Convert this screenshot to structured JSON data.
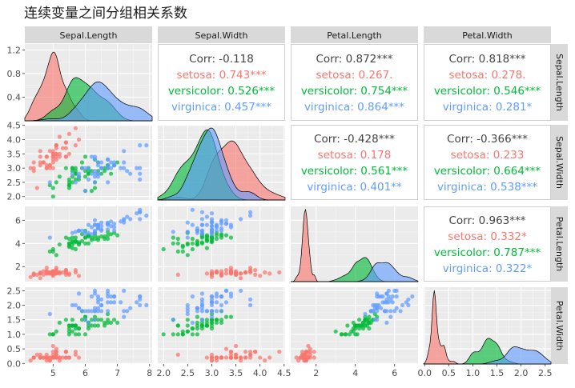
{
  "chart_data": {
    "type": "scatter",
    "title": "连续变量之间分组相关系数",
    "variables": [
      "Sepal.Length",
      "Sepal.Width",
      "Petal.Length",
      "Petal.Width"
    ],
    "groups": [
      {
        "name": "setosa",
        "color": "#F8766D"
      },
      {
        "name": "versicolor",
        "color": "#00BA38"
      },
      {
        "name": "virginica",
        "color": "#619CFF"
      }
    ],
    "ranges": [
      [
        4.3,
        7.9
      ],
      [
        2.0,
        4.4
      ],
      [
        1.0,
        6.9
      ],
      [
        0.1,
        2.5
      ]
    ],
    "ticks": [
      {
        "values": [
          5,
          6,
          7,
          8
        ],
        "labels": [
          "5",
          "6",
          "7",
          "8"
        ]
      },
      {
        "values": [
          2.0,
          2.5,
          3.0,
          3.5,
          4.0,
          4.5
        ],
        "labels": [
          "2.0",
          "2.5",
          "3.0",
          "3.5",
          "4.0",
          "4.5"
        ]
      },
      {
        "values": [
          2,
          4,
          6
        ],
        "labels": [
          "2",
          "4",
          "6"
        ]
      },
      {
        "values": [
          0.0,
          0.5,
          1.0,
          1.5,
          2.0,
          2.5
        ],
        "labels": [
          "0.0",
          "0.5",
          "1.0",
          "1.5",
          "2.0",
          "2.5"
        ]
      }
    ],
    "diag_y_ticks": {
      "values": [
        0.4,
        0.8,
        1.2
      ],
      "labels": [
        "0.4",
        "0.8",
        "1.2"
      ],
      "ymax": 1.3
    },
    "correlations": [
      {
        "row": 0,
        "col": 1,
        "lines": [
          "Corr: -0.118",
          "setosa: 0.743***",
          "versicolor: 0.526***",
          "virginica: 0.457***"
        ]
      },
      {
        "row": 0,
        "col": 2,
        "lines": [
          "Corr: 0.872***",
          "setosa: 0.267.",
          "versicolor: 0.754***",
          "virginica: 0.864***"
        ]
      },
      {
        "row": 0,
        "col": 3,
        "lines": [
          "Corr: 0.818***",
          "setosa: 0.278.",
          "versicolor: 0.546***",
          "virginica: 0.281*"
        ]
      },
      {
        "row": 1,
        "col": 2,
        "lines": [
          "Corr: -0.428***",
          "setosa: 0.178",
          "versicolor: 0.561***",
          "virginica: 0.401**"
        ]
      },
      {
        "row": 1,
        "col": 3,
        "lines": [
          "Corr: -0.366***",
          "setosa: 0.233",
          "versicolor: 0.664***",
          "virginica: 0.538***"
        ]
      },
      {
        "row": 2,
        "col": 3,
        "lines": [
          "Corr: 0.963***",
          "setosa: 0.332*",
          "versicolor: 0.787***",
          "virginica: 0.322*"
        ]
      }
    ],
    "data": {
      "setosa": [
        [
          5.1,
          3.5,
          1.4,
          0.2
        ],
        [
          4.9,
          3.0,
          1.4,
          0.2
        ],
        [
          4.7,
          3.2,
          1.3,
          0.2
        ],
        [
          4.6,
          3.1,
          1.5,
          0.2
        ],
        [
          5.0,
          3.6,
          1.4,
          0.2
        ],
        [
          5.4,
          3.9,
          1.7,
          0.4
        ],
        [
          4.6,
          3.4,
          1.4,
          0.3
        ],
        [
          5.0,
          3.4,
          1.5,
          0.2
        ],
        [
          4.4,
          2.9,
          1.4,
          0.2
        ],
        [
          4.9,
          3.1,
          1.5,
          0.1
        ],
        [
          5.4,
          3.7,
          1.5,
          0.2
        ],
        [
          4.8,
          3.4,
          1.6,
          0.2
        ],
        [
          4.8,
          3.0,
          1.4,
          0.1
        ],
        [
          4.3,
          3.0,
          1.1,
          0.1
        ],
        [
          5.8,
          4.0,
          1.2,
          0.2
        ],
        [
          5.7,
          4.4,
          1.5,
          0.4
        ],
        [
          5.4,
          3.9,
          1.3,
          0.4
        ],
        [
          5.1,
          3.5,
          1.4,
          0.3
        ],
        [
          5.7,
          3.8,
          1.7,
          0.3
        ],
        [
          5.1,
          3.8,
          1.5,
          0.3
        ],
        [
          5.4,
          3.4,
          1.7,
          0.2
        ],
        [
          5.1,
          3.7,
          1.5,
          0.4
        ],
        [
          4.6,
          3.6,
          1.0,
          0.2
        ],
        [
          5.1,
          3.3,
          1.7,
          0.5
        ],
        [
          4.8,
          3.4,
          1.9,
          0.2
        ],
        [
          5.0,
          3.0,
          1.6,
          0.2
        ],
        [
          5.0,
          3.4,
          1.6,
          0.4
        ],
        [
          5.2,
          3.5,
          1.5,
          0.2
        ],
        [
          5.2,
          3.4,
          1.4,
          0.2
        ],
        [
          4.7,
          3.2,
          1.6,
          0.2
        ],
        [
          4.8,
          3.1,
          1.6,
          0.2
        ],
        [
          5.4,
          3.4,
          1.5,
          0.4
        ],
        [
          5.2,
          4.1,
          1.5,
          0.1
        ],
        [
          5.5,
          4.2,
          1.4,
          0.2
        ],
        [
          4.9,
          3.1,
          1.5,
          0.2
        ],
        [
          5.0,
          3.2,
          1.2,
          0.2
        ],
        [
          5.5,
          3.5,
          1.3,
          0.2
        ],
        [
          4.9,
          3.6,
          1.4,
          0.1
        ],
        [
          4.4,
          3.0,
          1.3,
          0.2
        ],
        [
          5.1,
          3.4,
          1.5,
          0.2
        ],
        [
          5.0,
          3.5,
          1.3,
          0.3
        ],
        [
          4.5,
          2.3,
          1.3,
          0.3
        ],
        [
          4.4,
          3.2,
          1.3,
          0.2
        ],
        [
          5.0,
          3.5,
          1.6,
          0.6
        ],
        [
          5.1,
          3.8,
          1.9,
          0.4
        ],
        [
          4.8,
          3.0,
          1.4,
          0.3
        ],
        [
          5.1,
          3.8,
          1.6,
          0.2
        ],
        [
          4.6,
          3.2,
          1.4,
          0.2
        ],
        [
          5.3,
          3.7,
          1.5,
          0.2
        ],
        [
          5.0,
          3.3,
          1.4,
          0.2
        ]
      ],
      "versicolor": [
        [
          7.0,
          3.2,
          4.7,
          1.4
        ],
        [
          6.4,
          3.2,
          4.5,
          1.5
        ],
        [
          6.9,
          3.1,
          4.9,
          1.5
        ],
        [
          5.5,
          2.3,
          4.0,
          1.3
        ],
        [
          6.5,
          2.8,
          4.6,
          1.5
        ],
        [
          5.7,
          2.8,
          4.5,
          1.3
        ],
        [
          6.3,
          3.3,
          4.7,
          1.6
        ],
        [
          4.9,
          2.4,
          3.3,
          1.0
        ],
        [
          6.6,
          2.9,
          4.6,
          1.3
        ],
        [
          5.2,
          2.7,
          3.9,
          1.4
        ],
        [
          5.0,
          2.0,
          3.5,
          1.0
        ],
        [
          5.9,
          3.0,
          4.2,
          1.5
        ],
        [
          6.0,
          2.2,
          4.0,
          1.0
        ],
        [
          6.1,
          2.9,
          4.7,
          1.4
        ],
        [
          5.6,
          2.9,
          3.6,
          1.3
        ],
        [
          6.7,
          3.1,
          4.4,
          1.4
        ],
        [
          5.6,
          3.0,
          4.5,
          1.5
        ],
        [
          5.8,
          2.7,
          4.1,
          1.0
        ],
        [
          6.2,
          2.2,
          4.5,
          1.5
        ],
        [
          5.6,
          2.5,
          3.9,
          1.1
        ],
        [
          5.9,
          3.2,
          4.8,
          1.8
        ],
        [
          6.1,
          2.8,
          4.0,
          1.3
        ],
        [
          6.3,
          2.5,
          4.9,
          1.5
        ],
        [
          6.1,
          2.8,
          4.7,
          1.2
        ],
        [
          6.4,
          2.9,
          4.3,
          1.3
        ],
        [
          6.6,
          3.0,
          4.4,
          1.4
        ],
        [
          6.8,
          2.8,
          4.8,
          1.4
        ],
        [
          6.7,
          3.0,
          5.0,
          1.7
        ],
        [
          6.0,
          2.9,
          4.5,
          1.5
        ],
        [
          5.7,
          2.6,
          3.5,
          1.0
        ],
        [
          5.5,
          2.4,
          3.8,
          1.1
        ],
        [
          5.5,
          2.4,
          3.7,
          1.0
        ],
        [
          5.8,
          2.7,
          3.9,
          1.2
        ],
        [
          6.0,
          2.7,
          5.1,
          1.6
        ],
        [
          5.4,
          3.0,
          4.5,
          1.5
        ],
        [
          6.0,
          3.4,
          4.5,
          1.6
        ],
        [
          6.7,
          3.1,
          4.7,
          1.5
        ],
        [
          6.3,
          2.3,
          4.4,
          1.3
        ],
        [
          5.6,
          3.0,
          4.1,
          1.3
        ],
        [
          5.5,
          2.5,
          4.0,
          1.3
        ],
        [
          5.5,
          2.6,
          4.4,
          1.2
        ],
        [
          6.1,
          3.0,
          4.6,
          1.4
        ],
        [
          5.8,
          2.6,
          4.0,
          1.2
        ],
        [
          5.0,
          2.3,
          3.3,
          1.0
        ],
        [
          5.6,
          2.7,
          4.2,
          1.3
        ],
        [
          5.7,
          3.0,
          4.2,
          1.2
        ],
        [
          5.7,
          2.9,
          4.2,
          1.3
        ],
        [
          6.2,
          2.9,
          4.3,
          1.3
        ],
        [
          5.1,
          2.5,
          3.0,
          1.1
        ],
        [
          5.7,
          2.8,
          4.1,
          1.3
        ]
      ],
      "virginica": [
        [
          6.3,
          3.3,
          6.0,
          2.5
        ],
        [
          5.8,
          2.7,
          5.1,
          1.9
        ],
        [
          7.1,
          3.0,
          5.9,
          2.1
        ],
        [
          6.3,
          2.9,
          5.6,
          1.8
        ],
        [
          6.5,
          3.0,
          5.8,
          2.2
        ],
        [
          7.6,
          3.0,
          6.6,
          2.1
        ],
        [
          4.9,
          2.5,
          4.5,
          1.7
        ],
        [
          7.3,
          2.9,
          6.3,
          1.8
        ],
        [
          6.7,
          2.5,
          5.8,
          1.8
        ],
        [
          7.2,
          3.6,
          6.1,
          2.5
        ],
        [
          6.5,
          3.2,
          5.1,
          2.0
        ],
        [
          6.4,
          2.7,
          5.3,
          1.9
        ],
        [
          6.8,
          3.0,
          5.5,
          2.1
        ],
        [
          5.7,
          2.5,
          5.0,
          2.0
        ],
        [
          5.8,
          2.8,
          5.1,
          2.4
        ],
        [
          6.4,
          3.2,
          5.3,
          2.3
        ],
        [
          6.5,
          3.0,
          5.5,
          1.8
        ],
        [
          7.7,
          3.8,
          6.7,
          2.2
        ],
        [
          7.7,
          2.6,
          6.9,
          2.3
        ],
        [
          6.0,
          2.2,
          5.0,
          1.5
        ],
        [
          6.9,
          3.2,
          5.7,
          2.3
        ],
        [
          5.6,
          2.8,
          4.9,
          2.0
        ],
        [
          7.7,
          2.8,
          6.7,
          2.0
        ],
        [
          6.3,
          2.7,
          4.9,
          1.8
        ],
        [
          6.7,
          3.3,
          5.7,
          2.1
        ],
        [
          7.2,
          3.2,
          6.0,
          1.8
        ],
        [
          6.2,
          2.8,
          4.8,
          1.8
        ],
        [
          6.1,
          3.0,
          4.9,
          1.8
        ],
        [
          6.4,
          2.8,
          5.6,
          2.1
        ],
        [
          7.2,
          3.0,
          5.8,
          1.6
        ],
        [
          7.4,
          2.8,
          6.1,
          1.9
        ],
        [
          7.9,
          3.8,
          6.4,
          2.0
        ],
        [
          6.4,
          2.8,
          5.6,
          2.2
        ],
        [
          6.3,
          2.8,
          5.1,
          1.5
        ],
        [
          6.1,
          2.6,
          5.6,
          1.4
        ],
        [
          7.7,
          3.0,
          6.1,
          2.3
        ],
        [
          6.3,
          3.4,
          5.6,
          2.4
        ],
        [
          6.4,
          3.1,
          5.5,
          1.8
        ],
        [
          6.0,
          3.0,
          4.8,
          1.8
        ],
        [
          6.9,
          3.1,
          5.4,
          2.1
        ],
        [
          6.7,
          3.1,
          5.6,
          2.4
        ],
        [
          6.9,
          3.1,
          5.1,
          2.3
        ],
        [
          5.8,
          2.7,
          5.1,
          1.9
        ],
        [
          6.8,
          3.2,
          5.9,
          2.3
        ],
        [
          6.7,
          3.3,
          5.7,
          2.5
        ],
        [
          6.7,
          3.0,
          5.2,
          2.3
        ],
        [
          6.3,
          2.5,
          5.0,
          1.9
        ],
        [
          6.5,
          3.0,
          5.2,
          2.0
        ],
        [
          6.2,
          3.4,
          5.4,
          2.3
        ],
        [
          5.9,
          3.0,
          5.1,
          1.8
        ]
      ]
    }
  }
}
